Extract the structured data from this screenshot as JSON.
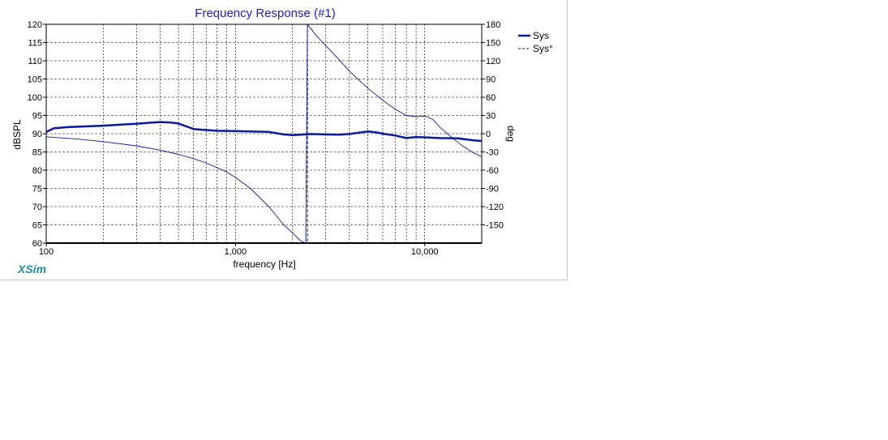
{
  "chart_data": {
    "type": "line",
    "title": "Frequency Response (#1)",
    "xlabel": "frequency [Hz]",
    "ylabel": "dBSPL",
    "y2label": "deg",
    "xscale": "log",
    "xlim": [
      100,
      20000
    ],
    "ylim": [
      60,
      120
    ],
    "y2lim": [
      -180,
      180
    ],
    "x_tick_labels": [
      {
        "value": 100,
        "label": "100"
      },
      {
        "value": 1000,
        "label": "1,000"
      },
      {
        "value": 10000,
        "label": "10,000"
      }
    ],
    "y_ticks": [
      60,
      65,
      70,
      75,
      80,
      85,
      90,
      95,
      100,
      105,
      110,
      115,
      120
    ],
    "y2_ticks": [
      -150,
      -120,
      -90,
      -60,
      -30,
      0,
      30,
      60,
      90,
      120,
      150,
      180
    ],
    "grid": true,
    "legend_position": "top-right",
    "series": [
      {
        "name": "Sys",
        "axis": "left",
        "style": "solid-thick",
        "x": [
          100,
          110,
          130,
          160,
          200,
          250,
          300,
          350,
          400,
          450,
          500,
          550,
          600,
          700,
          800,
          1000,
          1200,
          1500,
          1800,
          2000,
          2200,
          2500,
          3000,
          3500,
          4000,
          4500,
          5000,
          5500,
          6000,
          7000,
          8000,
          9000,
          10000,
          12000,
          15000,
          18000,
          20000
        ],
        "values": [
          90.5,
          91.5,
          91.8,
          92.0,
          92.2,
          92.5,
          92.7,
          93.0,
          93.2,
          93.1,
          92.8,
          92.0,
          91.3,
          91.0,
          90.8,
          90.7,
          90.6,
          90.5,
          89.8,
          89.6,
          89.7,
          89.9,
          89.8,
          89.7,
          89.9,
          90.3,
          90.6,
          90.4,
          90.0,
          89.5,
          88.8,
          89.1,
          89.0,
          88.8,
          88.7,
          88.2,
          88.0
        ]
      },
      {
        "name": "Sys°",
        "axis": "right",
        "style": "thin",
        "x": [
          100,
          150,
          200,
          300,
          400,
          500,
          600,
          700,
          800,
          900,
          1000,
          1200,
          1500,
          1800,
          2000,
          2200,
          2350,
          2400,
          2500,
          2700,
          3000,
          3500,
          4000,
          5000,
          6000,
          7000,
          8000,
          9000,
          10000,
          11000,
          12000,
          14000,
          16000,
          18000,
          20000
        ],
        "values": [
          -5,
          -9,
          -13,
          -20,
          -27,
          -34,
          -41,
          -48,
          -56,
          -63,
          -72,
          -90,
          -120,
          -150,
          -163,
          -176,
          -180,
          180,
          173,
          160,
          145,
          123,
          103,
          75,
          55,
          40,
          30,
          28,
          29,
          24,
          11,
          -7,
          -21,
          -31,
          -38
        ]
      }
    ]
  },
  "branding": {
    "name": "XSim",
    "color": "#1f8a9c"
  },
  "colors": {
    "series": "#0a1a9e",
    "title": "#1f1fc4",
    "grid": "#000000"
  }
}
